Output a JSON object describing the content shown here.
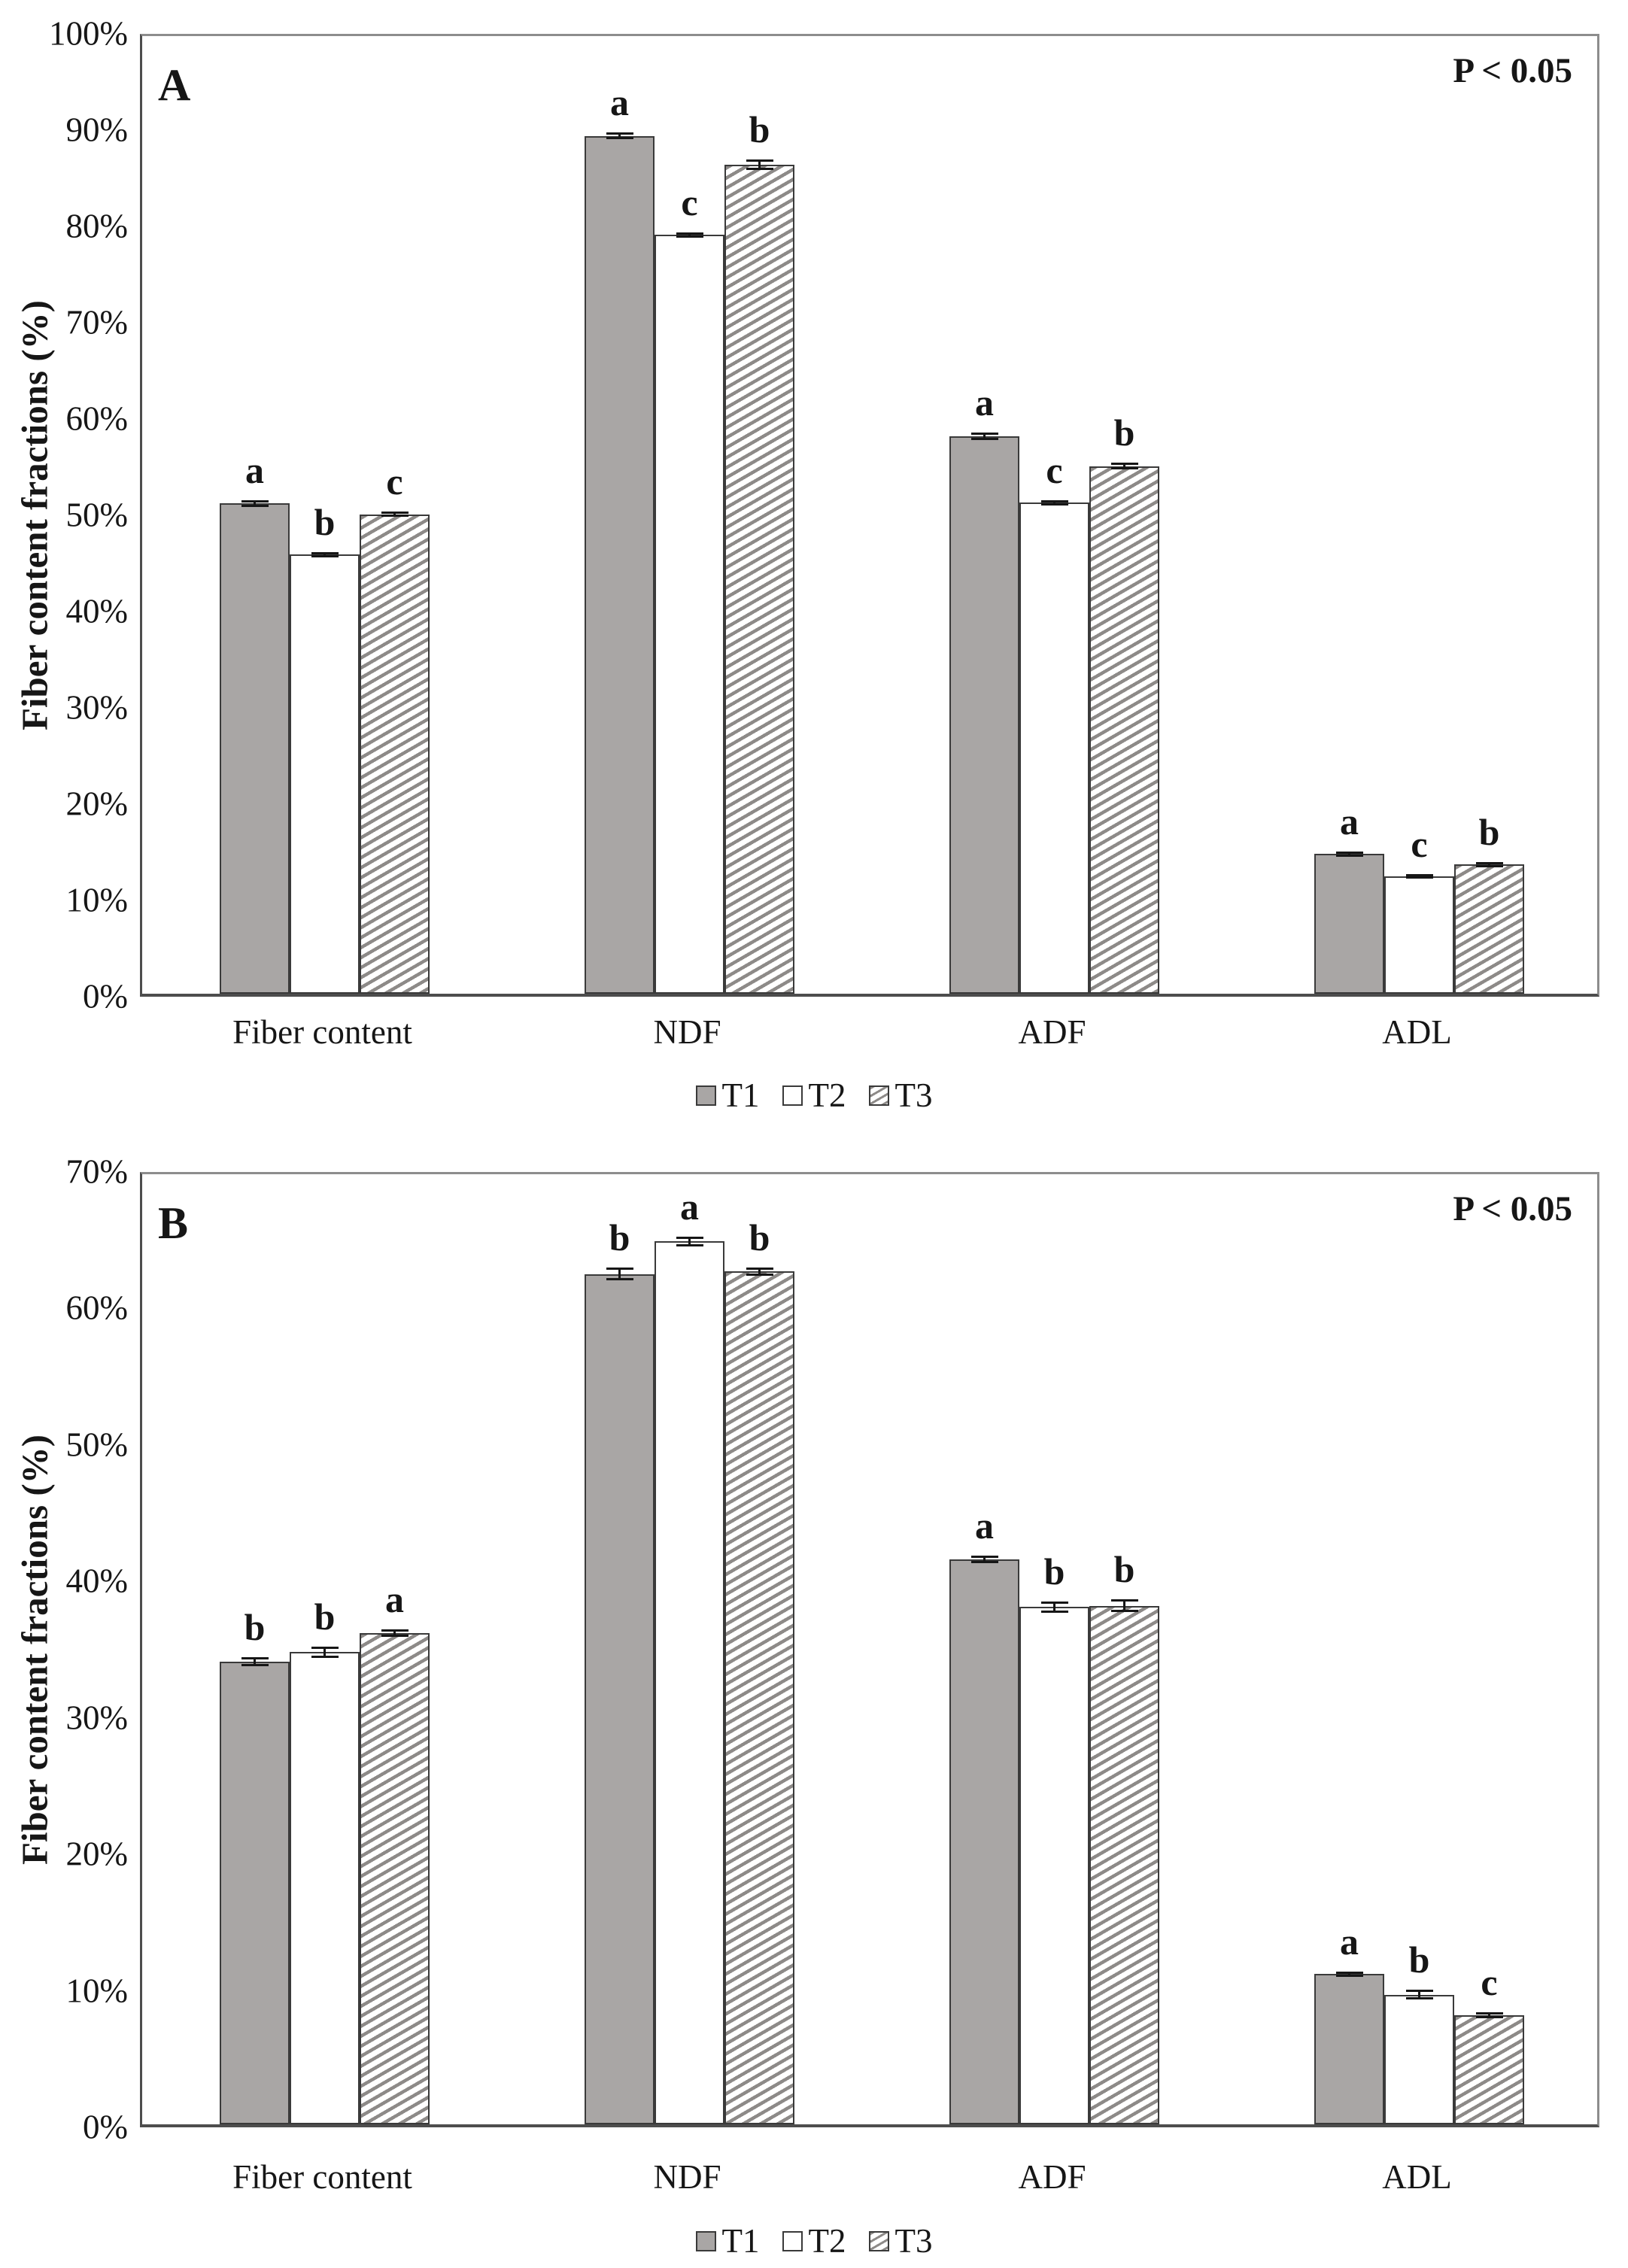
{
  "chart_data": [
    {
      "type": "bar",
      "panel": "A",
      "title_note": "P < 0.05",
      "ylabel": "Fiber content fractions (%)",
      "ylim": [
        0,
        100
      ],
      "y_tick_step": 10,
      "y_tick_labels": [
        "0%",
        "10%",
        "20%",
        "30%",
        "40%",
        "50%",
        "60%",
        "70%",
        "80%",
        "90%",
        "100%"
      ],
      "grid": false,
      "legend_position": "bottom",
      "categories": [
        "Fiber content",
        "NDF",
        "ADF",
        "ADL"
      ],
      "series": [
        {
          "name": "T1",
          "values": [
            50.9,
            89.1,
            57.9,
            14.5
          ],
          "errors": [
            0.25,
            0.3,
            0.3,
            0.2
          ],
          "sig_letters": [
            "a",
            "a",
            "a",
            "a"
          ]
        },
        {
          "name": "T2",
          "values": [
            45.6,
            78.8,
            51.0,
            12.2
          ],
          "errors": [
            0.2,
            0.2,
            0.2,
            0.15
          ],
          "sig_letters": [
            "b",
            "c",
            "c",
            "c"
          ]
        },
        {
          "name": "T3",
          "values": [
            49.8,
            86.1,
            54.8,
            13.4
          ],
          "errors": [
            0.2,
            0.45,
            0.25,
            0.2
          ],
          "sig_letters": [
            "c",
            "b",
            "b",
            "b"
          ]
        }
      ]
    },
    {
      "type": "bar",
      "panel": "B",
      "title_note": "P < 0.05",
      "ylabel": "Fiber content fractions (%)",
      "ylim": [
        0,
        70
      ],
      "y_tick_step": 10,
      "y_tick_labels": [
        "0%",
        "10%",
        "20%",
        "30%",
        "40%",
        "50%",
        "60%",
        "70%"
      ],
      "grid": false,
      "legend_position": "bottom",
      "categories": [
        "Fiber content",
        "NDF",
        "ADF",
        "ADL"
      ],
      "series": [
        {
          "name": "T1",
          "values": [
            33.9,
            62.3,
            41.4,
            11.0
          ],
          "errors": [
            0.25,
            0.4,
            0.2,
            0.15
          ],
          "sig_letters": [
            "b",
            "b",
            "a",
            "a"
          ]
        },
        {
          "name": "T2",
          "values": [
            34.6,
            64.7,
            37.9,
            9.5
          ],
          "errors": [
            0.35,
            0.3,
            0.35,
            0.3
          ],
          "sig_letters": [
            "b",
            "a",
            "b",
            "b"
          ]
        },
        {
          "name": "T3",
          "values": [
            36.0,
            62.5,
            38.0,
            8.0
          ],
          "errors": [
            0.2,
            0.25,
            0.4,
            0.15
          ],
          "sig_letters": [
            "a",
            "b",
            "b",
            "c"
          ]
        }
      ]
    }
  ],
  "colors": {
    "t1_fill": "#a9a6a5",
    "t2_fill": "#ffffff",
    "t3_hatch_line": "#8d8a88",
    "bar_border": "#3a3a3a",
    "axis": "#4d4d4d",
    "frame": "#8d8d8d",
    "text": "#161616"
  }
}
